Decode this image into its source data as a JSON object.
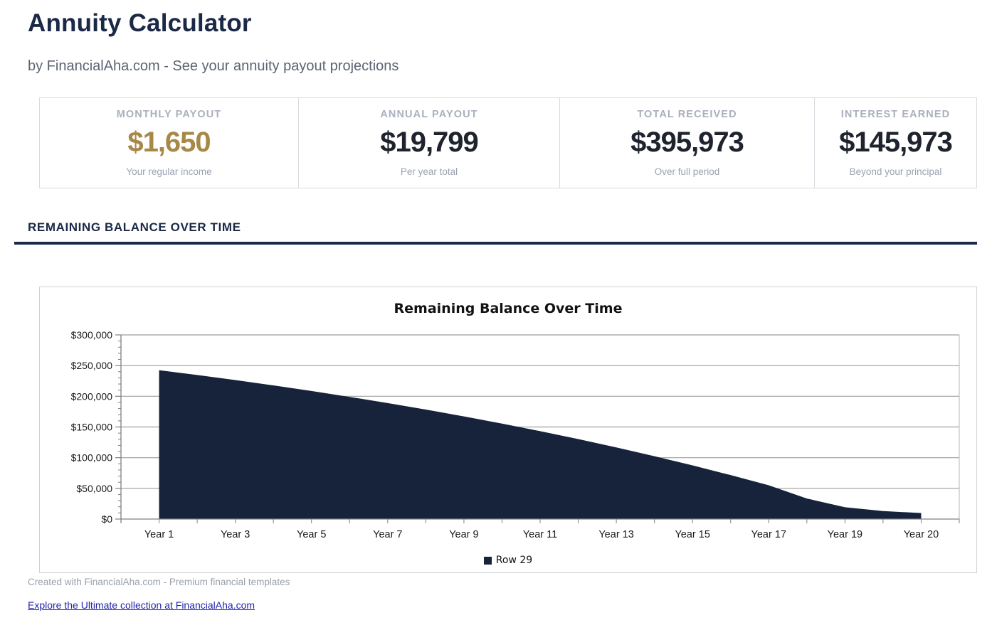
{
  "page": {
    "title": "Annuity Calculator",
    "subtitle": "by FinancialAha.com - See your annuity payout projections",
    "section_heading": "REMAINING BALANCE OVER TIME",
    "footer_note": "Created with FinancialAha.com - Premium financial templates",
    "footer_link": "Explore the Ultimate collection at FinancialAha.com"
  },
  "colors": {
    "navy": "#1b2946",
    "gold_accent": "#a68947",
    "dark_value": "#1e232e",
    "card_border": "#d8dbe0",
    "area_fill": "#16233a",
    "gridline": "#9e9e9e",
    "axis": "#808080",
    "link_blue": "#2323ad"
  },
  "stats": [
    {
      "label": "MONTHLY PAYOUT",
      "value": "$1,650",
      "sublabel": "Your regular income",
      "value_color": "#a68947"
    },
    {
      "label": "ANNUAL PAYOUT",
      "value": "$19,799",
      "sublabel": "Per year total",
      "value_color": "#1e232e"
    },
    {
      "label": "TOTAL RECEIVED",
      "value": "$395,973",
      "sublabel": "Over full period",
      "value_color": "#1e232e"
    },
    {
      "label": "INTEREST EARNED",
      "value": "$145,973",
      "sublabel": "Beyond your principal",
      "value_color": "#1e232e"
    }
  ],
  "chart_data": {
    "type": "area",
    "title": "Remaining Balance Over Time",
    "xlabel": "",
    "ylabel": "",
    "ylim": [
      0,
      300000
    ],
    "y_major_step": 50000,
    "y_minor_step": 10000,
    "y_tick_prefix": "$",
    "grid": true,
    "legend": {
      "position": "bottom",
      "entries": [
        {
          "label": "Row 29",
          "color": "#16233a"
        }
      ]
    },
    "x_labeled_ticks": [
      {
        "index": 0,
        "label": "Year 1"
      },
      {
        "index": 2,
        "label": "Year 3"
      },
      {
        "index": 4,
        "label": "Year 5"
      },
      {
        "index": 6,
        "label": "Year 7"
      },
      {
        "index": 8,
        "label": "Year 9"
      },
      {
        "index": 10,
        "label": "Year 11"
      },
      {
        "index": 12,
        "label": "Year 13"
      },
      {
        "index": 14,
        "label": "Year 15"
      },
      {
        "index": 16,
        "label": "Year 17"
      },
      {
        "index": 18,
        "label": "Year 19"
      },
      {
        "index": 20,
        "label": "Year 20"
      }
    ],
    "series": [
      {
        "name": "Row 29",
        "color": "#16233a",
        "values": [
          242500,
          234700,
          226400,
          217750,
          208600,
          199000,
          189000,
          178400,
          167200,
          155500,
          143200,
          130300,
          116700,
          102400,
          87400,
          71600,
          55000,
          33500,
          19200,
          13000,
          9800
        ]
      }
    ]
  }
}
